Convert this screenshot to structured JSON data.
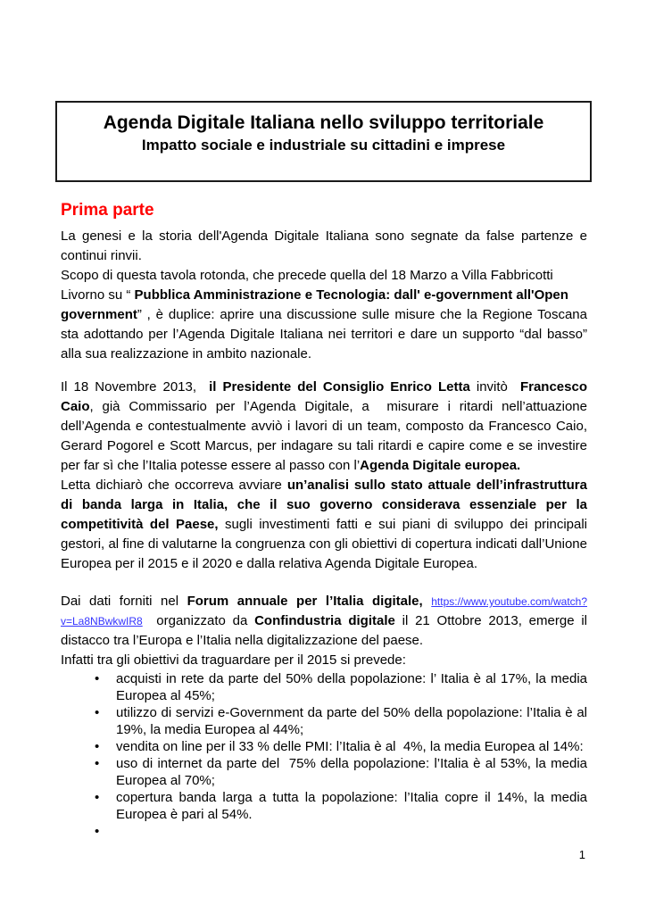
{
  "title_box": {
    "title": "Agenda Digitale Italiana nello sviluppo territoriale",
    "subtitle": "Impatto sociale e industriale su cittadini e imprese"
  },
  "heading": {
    "text": "Prima parte",
    "color": "#ff0000"
  },
  "colors": {
    "heading_red": "#ff0000",
    "link_blue": "#3333ff",
    "text": "#000000",
    "box_border": "#1a1a1a"
  },
  "body": {
    "blocks": [
      {
        "kind": "p",
        "runs": [
          {
            "t": "La genesi e la storia dell'Agenda Digitale Italiana sono segnate da false partenze e continui rinvii."
          }
        ]
      },
      {
        "kind": "p",
        "runs": [
          {
            "t": "Scopo di questa tavola rotonda, che precede quella del 18 Marzo a Villa Fabbricotti",
            "br": true
          },
          {
            "t": "Livorno su “ "
          },
          {
            "t": "Pubblica Amministrazione e Tecnologia: dall' e-government all'Open",
            "b": true,
            "br": true
          },
          {
            "t": "government",
            "b": true
          },
          {
            "t": "” , è duplice: aprire una discussione sulle misure che la Regione Toscana sta adottando per l’Agenda Digitale Italiana nei territori e dare un supporto “dal basso” alla sua realizzazione in ambito nazionale."
          }
        ]
      },
      {
        "kind": "p",
        "cls": "sp-md",
        "runs": [
          {
            "t": "Il 18 Novembre 2013,  "
          },
          {
            "t": "il Presidente del Consiglio Enrico Letta",
            "b": true
          },
          {
            "t": " invitò  "
          },
          {
            "t": "Francesco Caio",
            "b": true
          },
          {
            "t": ", già Commissario per l’Agenda Digitale, a  misurare i ritardi nell’attuazione dell’Agenda e contestualmente avviò i lavori di un team, composto da Francesco Caio, Gerard Pogorel e Scott Marcus, per indagare su tali ritardi e capire come e se investire per far sì che l’Italia potesse essere al passo con l’"
          },
          {
            "t": "Agenda Digitale europea.",
            "b": true
          }
        ]
      },
      {
        "kind": "p",
        "runs": [
          {
            "t": "Letta dichiarò che occorreva avviare "
          },
          {
            "t": "un’analisi sullo stato attuale dell’infrastruttura di banda larga in Italia, che il suo governo considerava essenziale per la competitività del Paese,",
            "b": true
          },
          {
            "t": " sugli investimenti fatti e sui piani di sviluppo dei principali gestori, al fine di valutarne la congruenza con gli obiettivi di copertura indicati dall’Unione Europea per il 2015 e il 2020 e dalla relativa Agenda Digitale Europea."
          }
        ]
      },
      {
        "kind": "p",
        "cls": "sp-lg",
        "runs": [
          {
            "t": "Dai dati forniti nel "
          },
          {
            "t": "Forum annuale per l’Italia digitale,",
            "b": true
          },
          {
            "t": " "
          },
          {
            "t": "https://www.youtube.com/watch?v=La8NBwkwIR8",
            "link": true
          },
          {
            "t": "  organizzato da "
          },
          {
            "t": "Confindustria digitale",
            "b": true
          },
          {
            "t": " il 21 Ottobre 2013, emerge il distacco tra l’Europa e l’Italia nella digitalizzazione del paese."
          }
        ]
      },
      {
        "kind": "p",
        "runs": [
          {
            "t": "Infatti tra gli obiettivi da traguardare per il 2015 si prevede:"
          }
        ]
      },
      {
        "kind": "list",
        "items": [
          {
            "runs": [
              {
                "t": "acquisti in rete da parte del 50% della popolazione: l’ Italia è al 17%, la media Europea al 45%;"
              }
            ]
          },
          {
            "runs": [
              {
                "t": "utilizzo di servizi e-Government da parte del 50% della popolazione: l’Italia è al 19%, la media Europea al 44%;"
              }
            ]
          },
          {
            "runs": [
              {
                "t": "vendita on line per il 33 % delle PMI: l’Italia è al  4%, la media Europea al 14%:"
              }
            ]
          },
          {
            "runs": [
              {
                "t": "uso di internet da parte del  75% della popolazione: l’Italia è al 53%, la media Europea al 70%;"
              }
            ]
          },
          {
            "runs": [
              {
                "t": "copertura banda larga a tutta la popolazione: l’Italia copre il 14%, la media Europea è pari al 54%."
              }
            ]
          },
          {
            "runs": []
          }
        ]
      }
    ]
  },
  "page": {
    "number": "1"
  }
}
